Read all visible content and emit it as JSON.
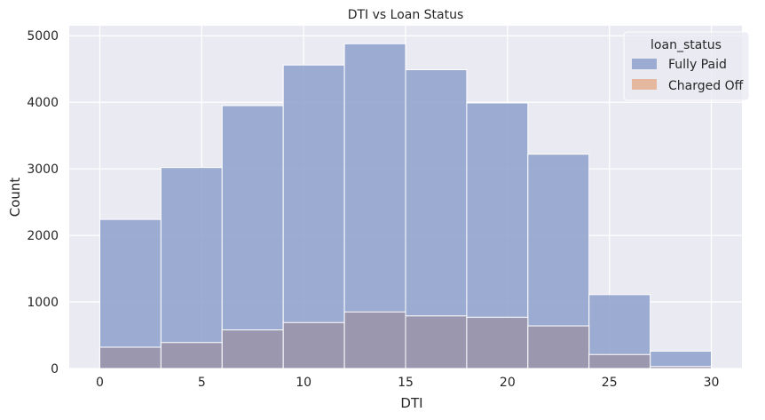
{
  "chart_data": {
    "type": "bar",
    "subtype": "histogram-overlaid",
    "title": "DTI vs Loan Status",
    "xlabel": "DTI",
    "ylabel": "Count",
    "xlim": [
      -1.5,
      31.5
    ],
    "ylim": [
      0,
      5150
    ],
    "xticks": [
      0,
      5,
      10,
      15,
      20,
      25,
      30
    ],
    "yticks": [
      0,
      1000,
      2000,
      3000,
      4000,
      5000
    ],
    "bin_edges": [
      0,
      3,
      6,
      9,
      12,
      15,
      18,
      21,
      24,
      27,
      30
    ],
    "series": [
      {
        "name": "Fully Paid",
        "color": "#8da0cb",
        "values": [
          2240,
          3020,
          3950,
          4560,
          4880,
          4490,
          3990,
          3220,
          1110,
          260
        ]
      },
      {
        "name": "Charged Off",
        "color": "#dd8452",
        "values": [
          320,
          390,
          580,
          690,
          850,
          790,
          770,
          640,
          210,
          30
        ]
      }
    ],
    "legend": {
      "title": "loan_status",
      "position": "top-right"
    },
    "grid": true,
    "colors": {
      "background": "#eaeaf2",
      "grid": "#ffffff",
      "fully_paid": "#8da0cb",
      "charged_off": "#dd8452",
      "overlap": "#9b96ad"
    }
  }
}
